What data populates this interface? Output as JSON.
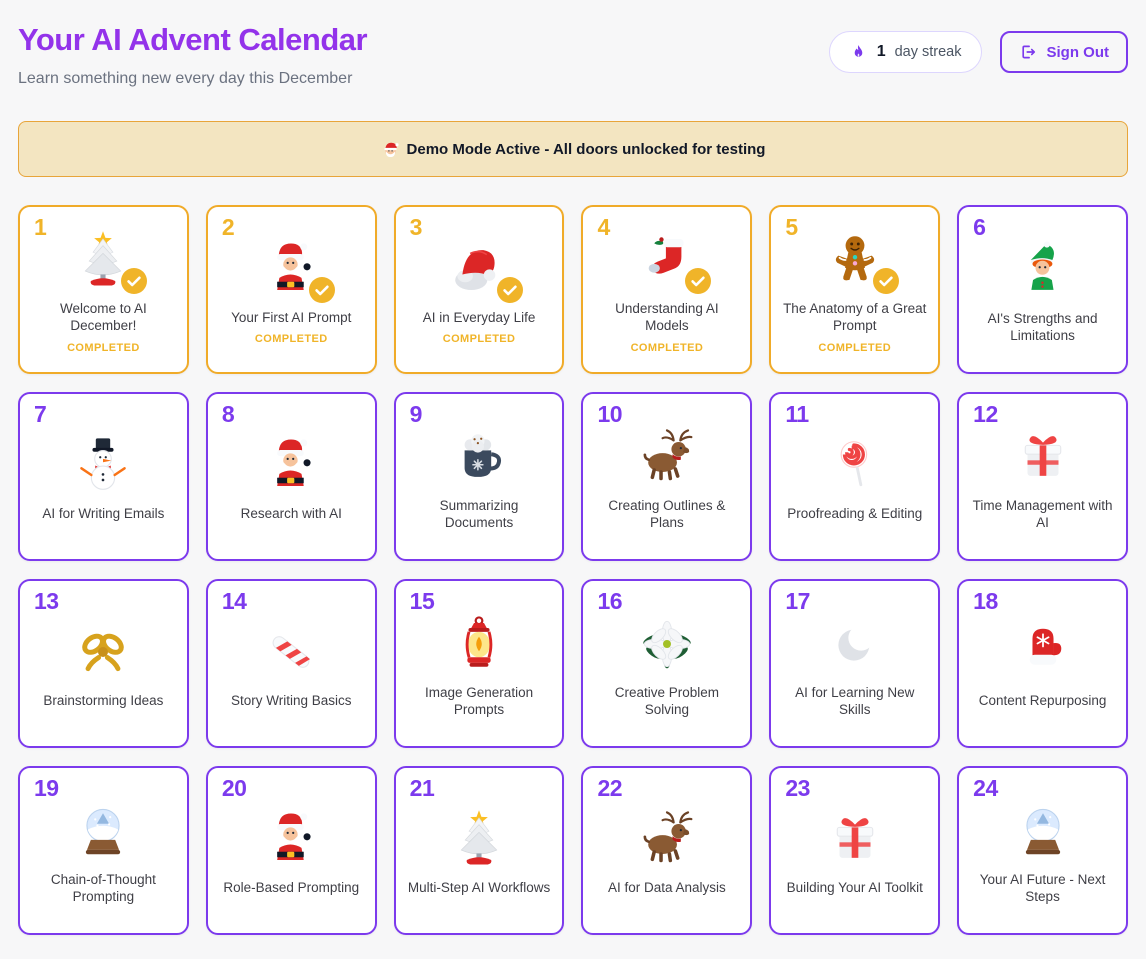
{
  "header": {
    "title": "Your AI Advent Calendar",
    "subtitle": "Learn something new every day this December",
    "streak": {
      "icon": "flame-icon",
      "count": "1",
      "label": "day streak"
    },
    "sign_out": {
      "icon": "logout-icon",
      "label": "Sign Out"
    }
  },
  "banner": {
    "icon": "santa-emoji-icon",
    "emoji": "🎅",
    "text": "Demo Mode Active - All doors unlocked for testing"
  },
  "door_badge_icon": "check-icon",
  "colors": {
    "accent_purple": "#7c3aed",
    "title_purple": "#9333ea",
    "gold": "#f0b429",
    "banner_bg": "#f3e5c1",
    "banner_border": "#e8a53a",
    "page_bg": "#f7f7f8",
    "card_bg": "#ffffff"
  },
  "doors": [
    {
      "number": "1",
      "title": "Welcome to AI December!",
      "icon": "christmas-tree",
      "completed": true,
      "status": "COMPLETED"
    },
    {
      "number": "2",
      "title": "Your First AI Prompt",
      "icon": "santa",
      "completed": true,
      "status": "COMPLETED"
    },
    {
      "number": "3",
      "title": "AI in Everyday Life",
      "icon": "santa-hat",
      "completed": true,
      "status": "COMPLETED"
    },
    {
      "number": "4",
      "title": "Understanding AI Models",
      "icon": "stocking",
      "completed": true,
      "status": "COMPLETED"
    },
    {
      "number": "5",
      "title": "The Anatomy of a Great Prompt",
      "icon": "gingerbread-man",
      "completed": true,
      "status": "COMPLETED"
    },
    {
      "number": "6",
      "title": "AI's Strengths and Limitations",
      "icon": "elf",
      "completed": false
    },
    {
      "number": "7",
      "title": "AI for Writing Emails",
      "icon": "snowman",
      "completed": false
    },
    {
      "number": "8",
      "title": "Research with AI",
      "icon": "santa",
      "completed": false
    },
    {
      "number": "9",
      "title": "Summarizing Documents",
      "icon": "hot-cocoa",
      "completed": false
    },
    {
      "number": "10",
      "title": "Creating Outlines & Plans",
      "icon": "reindeer",
      "completed": false
    },
    {
      "number": "11",
      "title": "Proofreading & Editing",
      "icon": "lollipop",
      "completed": false
    },
    {
      "number": "12",
      "title": "Time Management with AI",
      "icon": "gift-box",
      "completed": false
    },
    {
      "number": "13",
      "title": "Brainstorming Ideas",
      "icon": "gold-bow",
      "completed": false
    },
    {
      "number": "14",
      "title": "Story Writing Basics",
      "icon": "candy-cane",
      "completed": false
    },
    {
      "number": "15",
      "title": "Image Generation Prompts",
      "icon": "lantern",
      "completed": false
    },
    {
      "number": "16",
      "title": "Creative Problem Solving",
      "icon": "white-flower",
      "completed": false
    },
    {
      "number": "17",
      "title": "AI for Learning New Skills",
      "icon": "crescent-moon",
      "completed": false
    },
    {
      "number": "18",
      "title": "Content Repurposing",
      "icon": "mitten",
      "completed": false
    },
    {
      "number": "19",
      "title": "Chain-of-Thought Prompting",
      "icon": "snow-globe",
      "completed": false
    },
    {
      "number": "20",
      "title": "Role-Based Prompting",
      "icon": "santa",
      "completed": false
    },
    {
      "number": "21",
      "title": "Multi-Step AI Workflows",
      "icon": "christmas-tree",
      "completed": false
    },
    {
      "number": "22",
      "title": "AI for Data Analysis",
      "icon": "reindeer",
      "completed": false
    },
    {
      "number": "23",
      "title": "Building Your AI Toolkit",
      "icon": "gift-box",
      "completed": false
    },
    {
      "number": "24",
      "title": "Your AI Future - Next Steps",
      "icon": "snow-globe",
      "completed": false
    }
  ]
}
